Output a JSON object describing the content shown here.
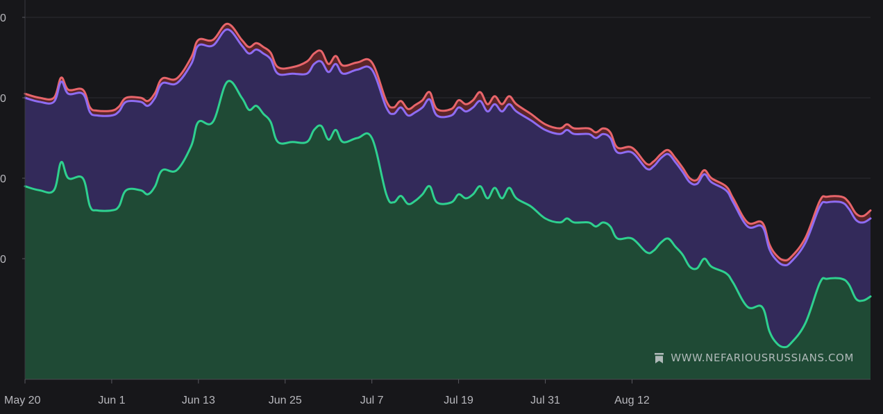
{
  "chart_data": {
    "type": "area",
    "stacked": true,
    "x_labels": [
      "May 20",
      "Jun 1",
      "Jun 13",
      "Jun 25",
      "Jul 7",
      "Jul 19",
      "Jul 31",
      "Aug 12"
    ],
    "y_tick_labels": [
      "0",
      "0",
      "0",
      "0"
    ],
    "grid": true,
    "series": [
      {
        "color": "#2fd08f",
        "fill": "#1f4a35",
        "values": [
          [
            0,
            590
          ],
          [
            2,
            585
          ],
          [
            4,
            585
          ],
          [
            5,
            620
          ],
          [
            6,
            600
          ],
          [
            8,
            600
          ],
          [
            9,
            565
          ],
          [
            10,
            560
          ],
          [
            12,
            560
          ],
          [
            13,
            565
          ],
          [
            14,
            585
          ],
          [
            16,
            585
          ],
          [
            17,
            580
          ],
          [
            18,
            590
          ],
          [
            19,
            610
          ],
          [
            21,
            610
          ],
          [
            23,
            640
          ],
          [
            24,
            670
          ],
          [
            26,
            670
          ],
          [
            28,
            720
          ],
          [
            30,
            700
          ],
          [
            31,
            685
          ],
          [
            32,
            690
          ],
          [
            33,
            680
          ],
          [
            34,
            670
          ],
          [
            35,
            645
          ],
          [
            37,
            645
          ],
          [
            39,
            645
          ],
          [
            40,
            660
          ],
          [
            41,
            665
          ],
          [
            42,
            648
          ],
          [
            43,
            660
          ],
          [
            44,
            645
          ],
          [
            46,
            650
          ],
          [
            48,
            650
          ],
          [
            50,
            580
          ],
          [
            51,
            570
          ],
          [
            52,
            578
          ],
          [
            53,
            568
          ],
          [
            54,
            572
          ],
          [
            55,
            580
          ],
          [
            56,
            590
          ],
          [
            57,
            570
          ],
          [
            59,
            570
          ],
          [
            60,
            580
          ],
          [
            61,
            575
          ],
          [
            62,
            580
          ],
          [
            63,
            590
          ],
          [
            64,
            575
          ],
          [
            65,
            588
          ],
          [
            66,
            575
          ],
          [
            67,
            588
          ],
          [
            68,
            575
          ],
          [
            70,
            565
          ],
          [
            72,
            550
          ],
          [
            74,
            545
          ],
          [
            75,
            550
          ],
          [
            76,
            545
          ],
          [
            78,
            545
          ],
          [
            79,
            540
          ],
          [
            80,
            545
          ],
          [
            81,
            540
          ],
          [
            82,
            525
          ],
          [
            84,
            525
          ],
          [
            86,
            508
          ],
          [
            87,
            510
          ],
          [
            88,
            520
          ],
          [
            89,
            525
          ],
          [
            90,
            515
          ],
          [
            91,
            505
          ],
          [
            92,
            490
          ],
          [
            93,
            488
          ],
          [
            94,
            500
          ],
          [
            95,
            490
          ],
          [
            97,
            482
          ],
          [
            98,
            470
          ],
          [
            100,
            440
          ],
          [
            102,
            440
          ],
          [
            103,
            410
          ],
          [
            104,
            395
          ],
          [
            105,
            390
          ],
          [
            106,
            395
          ],
          [
            108,
            420
          ],
          [
            110,
            470
          ],
          [
            111,
            475
          ],
          [
            113,
            475
          ],
          [
            114,
            468
          ],
          [
            115,
            450
          ],
          [
            116,
            448
          ],
          [
            117,
            453
          ]
        ]
      },
      {
        "color": "#8e6cf2",
        "fill": "#332a5a",
        "values": [
          [
            0,
            700
          ],
          [
            2,
            695
          ],
          [
            4,
            695
          ],
          [
            5,
            720
          ],
          [
            6,
            705
          ],
          [
            8,
            705
          ],
          [
            9,
            682
          ],
          [
            10,
            678
          ],
          [
            12,
            678
          ],
          [
            13,
            683
          ],
          [
            14,
            695
          ],
          [
            16,
            695
          ],
          [
            17,
            690
          ],
          [
            18,
            700
          ],
          [
            19,
            718
          ],
          [
            21,
            718
          ],
          [
            23,
            742
          ],
          [
            24,
            765
          ],
          [
            26,
            765
          ],
          [
            28,
            785
          ],
          [
            30,
            765
          ],
          [
            31,
            755
          ],
          [
            32,
            760
          ],
          [
            33,
            755
          ],
          [
            34,
            748
          ],
          [
            35,
            730
          ],
          [
            37,
            730
          ],
          [
            39,
            730
          ],
          [
            40,
            742
          ],
          [
            41,
            745
          ],
          [
            42,
            732
          ],
          [
            43,
            742
          ],
          [
            44,
            730
          ],
          [
            46,
            735
          ],
          [
            48,
            735
          ],
          [
            50,
            688
          ],
          [
            51,
            680
          ],
          [
            52,
            688
          ],
          [
            53,
            678
          ],
          [
            54,
            682
          ],
          [
            55,
            688
          ],
          [
            56,
            698
          ],
          [
            57,
            678
          ],
          [
            59,
            678
          ],
          [
            60,
            688
          ],
          [
            61,
            683
          ],
          [
            62,
            688
          ],
          [
            63,
            696
          ],
          [
            64,
            683
          ],
          [
            65,
            692
          ],
          [
            66,
            683
          ],
          [
            67,
            692
          ],
          [
            68,
            683
          ],
          [
            70,
            672
          ],
          [
            72,
            660
          ],
          [
            74,
            655
          ],
          [
            75,
            660
          ],
          [
            76,
            655
          ],
          [
            78,
            655
          ],
          [
            79,
            650
          ],
          [
            80,
            655
          ],
          [
            81,
            650
          ],
          [
            82,
            632
          ],
          [
            84,
            632
          ],
          [
            86,
            612
          ],
          [
            87,
            615
          ],
          [
            88,
            625
          ],
          [
            89,
            630
          ],
          [
            90,
            620
          ],
          [
            91,
            608
          ],
          [
            92,
            595
          ],
          [
            93,
            593
          ],
          [
            94,
            605
          ],
          [
            95,
            595
          ],
          [
            97,
            585
          ],
          [
            98,
            570
          ],
          [
            100,
            540
          ],
          [
            102,
            540
          ],
          [
            103,
            512
          ],
          [
            104,
            498
          ],
          [
            105,
            492
          ],
          [
            106,
            496
          ],
          [
            108,
            520
          ],
          [
            110,
            565
          ],
          [
            111,
            570
          ],
          [
            113,
            570
          ],
          [
            114,
            562
          ],
          [
            115,
            548
          ],
          [
            116,
            545
          ],
          [
            117,
            550
          ]
        ]
      },
      {
        "color": "#e8656a",
        "fill": "#5a2529",
        "values": [
          [
            0,
            705
          ],
          [
            2,
            700
          ],
          [
            4,
            700
          ],
          [
            5,
            725
          ],
          [
            6,
            710
          ],
          [
            8,
            710
          ],
          [
            9,
            688
          ],
          [
            10,
            684
          ],
          [
            12,
            684
          ],
          [
            13,
            689
          ],
          [
            14,
            700
          ],
          [
            16,
            700
          ],
          [
            17,
            696
          ],
          [
            18,
            706
          ],
          [
            19,
            724
          ],
          [
            21,
            724
          ],
          [
            23,
            750
          ],
          [
            24,
            772
          ],
          [
            26,
            772
          ],
          [
            28,
            792
          ],
          [
            30,
            772
          ],
          [
            31,
            763
          ],
          [
            32,
            768
          ],
          [
            33,
            763
          ],
          [
            34,
            756
          ],
          [
            35,
            738
          ],
          [
            37,
            738
          ],
          [
            39,
            745
          ],
          [
            40,
            755
          ],
          [
            41,
            758
          ],
          [
            42,
            742
          ],
          [
            43,
            752
          ],
          [
            44,
            740
          ],
          [
            46,
            744
          ],
          [
            48,
            744
          ],
          [
            50,
            696
          ],
          [
            51,
            688
          ],
          [
            52,
            696
          ],
          [
            53,
            686
          ],
          [
            54,
            691
          ],
          [
            55,
            697
          ],
          [
            56,
            707
          ],
          [
            57,
            686
          ],
          [
            59,
            686
          ],
          [
            60,
            697
          ],
          [
            61,
            692
          ],
          [
            62,
            697
          ],
          [
            63,
            707
          ],
          [
            64,
            692
          ],
          [
            65,
            702
          ],
          [
            66,
            692
          ],
          [
            67,
            702
          ],
          [
            68,
            692
          ],
          [
            70,
            680
          ],
          [
            72,
            667
          ],
          [
            74,
            662
          ],
          [
            75,
            667
          ],
          [
            76,
            662
          ],
          [
            78,
            662
          ],
          [
            79,
            657
          ],
          [
            80,
            662
          ],
          [
            81,
            657
          ],
          [
            82,
            638
          ],
          [
            84,
            638
          ],
          [
            86,
            618
          ],
          [
            87,
            621
          ],
          [
            88,
            630
          ],
          [
            89,
            635
          ],
          [
            90,
            625
          ],
          [
            91,
            613
          ],
          [
            92,
            600
          ],
          [
            93,
            598
          ],
          [
            94,
            610
          ],
          [
            95,
            600
          ],
          [
            97,
            590
          ],
          [
            98,
            575
          ],
          [
            100,
            545
          ],
          [
            102,
            545
          ],
          [
            103,
            518
          ],
          [
            104,
            504
          ],
          [
            105,
            498
          ],
          [
            106,
            502
          ],
          [
            108,
            526
          ],
          [
            110,
            572
          ],
          [
            111,
            577
          ],
          [
            113,
            577
          ],
          [
            114,
            570
          ],
          [
            115,
            556
          ],
          [
            116,
            553
          ],
          [
            117,
            560
          ]
        ]
      }
    ],
    "xlim": [
      0,
      117
    ],
    "ylim": [
      350,
      800
    ],
    "watermark": "WWW.NEFARIOUSRUSSIANS.COM"
  }
}
